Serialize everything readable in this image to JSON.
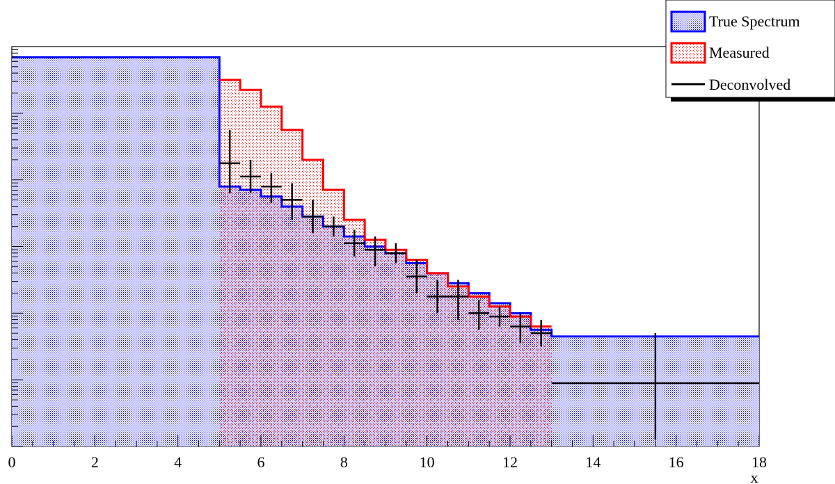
{
  "chart_data": {
    "type": "histogram",
    "xlabel": "x",
    "ylabel": "",
    "xlim": [
      0,
      18
    ],
    "y_scale": "log",
    "ylim_log10": [
      0,
      6
    ],
    "x_ticks": [
      0,
      2,
      4,
      6,
      8,
      10,
      12,
      14,
      16,
      18
    ],
    "legend": {
      "placement": "top-right",
      "entries": [
        {
          "label": "True Spectrum",
          "style": "filled box",
          "color": "#0000ff"
        },
        {
          "label": "Measured",
          "style": "filled box",
          "color": "#ff0000"
        },
        {
          "label": "Deconvolved",
          "style": "line",
          "color": "#000000"
        }
      ]
    },
    "true_spectrum": {
      "name": "True Spectrum",
      "color": "#0000ff",
      "bin_edges": [
        0,
        5,
        5.5,
        6,
        6.5,
        7,
        7.5,
        8,
        8.5,
        9,
        9.5,
        10,
        10.5,
        11,
        11.5,
        12,
        12.5,
        13,
        18
      ],
      "log10_values": [
        5.84,
        3.9,
        3.85,
        3.75,
        3.6,
        3.45,
        3.3,
        3.15,
        3.0,
        2.9,
        2.75,
        2.6,
        2.45,
        2.3,
        2.15,
        2.0,
        1.75,
        1.65
      ]
    },
    "measured": {
      "name": "Measured",
      "color": "#ff0000",
      "bin_edges": [
        5,
        5.5,
        6,
        6.5,
        7,
        7.5,
        8,
        8.5,
        9,
        9.5,
        10,
        10.5,
        11,
        11.5,
        12,
        12.5,
        13
      ],
      "log10_values": [
        5.5,
        5.35,
        5.1,
        4.75,
        4.3,
        3.85,
        3.4,
        3.1,
        2.95,
        2.8,
        2.6,
        2.4,
        2.25,
        2.1,
        1.95,
        1.8
      ]
    },
    "deconvolved": {
      "name": "Deconvolved",
      "color": "#000000",
      "points": [
        {
          "xlo": 5,
          "xhi": 5.5,
          "log10_y": 4.25,
          "log10_err_lo": 3.8,
          "log10_err_hi": 4.75
        },
        {
          "xlo": 5.5,
          "xhi": 6,
          "log10_y": 4.05,
          "log10_err_lo": 3.8,
          "log10_err_hi": 4.3
        },
        {
          "xlo": 6,
          "xhi": 6.5,
          "log10_y": 3.9,
          "log10_err_lo": 3.65,
          "log10_err_hi": 4.1
        },
        {
          "xlo": 6.5,
          "xhi": 7,
          "log10_y": 3.7,
          "log10_err_lo": 3.4,
          "log10_err_hi": 3.95
        },
        {
          "xlo": 7,
          "xhi": 7.5,
          "log10_y": 3.45,
          "log10_err_lo": 3.2,
          "log10_err_hi": 3.7
        },
        {
          "xlo": 7.5,
          "xhi": 8,
          "log10_y": 3.3,
          "log10_err_lo": 3.15,
          "log10_err_hi": 3.45
        },
        {
          "xlo": 8,
          "xhi": 8.5,
          "log10_y": 3.05,
          "log10_err_lo": 2.85,
          "log10_err_hi": 3.25
        },
        {
          "xlo": 8.5,
          "xhi": 9,
          "log10_y": 2.95,
          "log10_err_lo": 2.7,
          "log10_err_hi": 3.15
        },
        {
          "xlo": 9,
          "xhi": 9.5,
          "log10_y": 2.9,
          "log10_err_lo": 2.75,
          "log10_err_hi": 3.05
        },
        {
          "xlo": 9.5,
          "xhi": 10,
          "log10_y": 2.55,
          "log10_err_lo": 2.3,
          "log10_err_hi": 2.8
        },
        {
          "xlo": 10,
          "xhi": 10.5,
          "log10_y": 2.25,
          "log10_err_lo": 2.0,
          "log10_err_hi": 2.5
        },
        {
          "xlo": 10.5,
          "xhi": 11,
          "log10_y": 2.25,
          "log10_err_lo": 1.9,
          "log10_err_hi": 2.5
        },
        {
          "xlo": 11,
          "xhi": 11.5,
          "log10_y": 2.0,
          "log10_err_lo": 1.75,
          "log10_err_hi": 2.2
        },
        {
          "xlo": 11.5,
          "xhi": 12,
          "log10_y": 1.95,
          "log10_err_lo": 1.8,
          "log10_err_hi": 2.1
        },
        {
          "xlo": 12,
          "xhi": 12.5,
          "log10_y": 1.8,
          "log10_err_lo": 1.55,
          "log10_err_hi": 2.0
        },
        {
          "xlo": 12.5,
          "xhi": 13,
          "log10_y": 1.7,
          "log10_err_lo": 1.5,
          "log10_err_hi": 1.9
        },
        {
          "xlo": 13,
          "xhi": 18,
          "log10_y": 0.95,
          "log10_err_lo": 0.1,
          "log10_err_hi": 1.7
        }
      ]
    }
  }
}
